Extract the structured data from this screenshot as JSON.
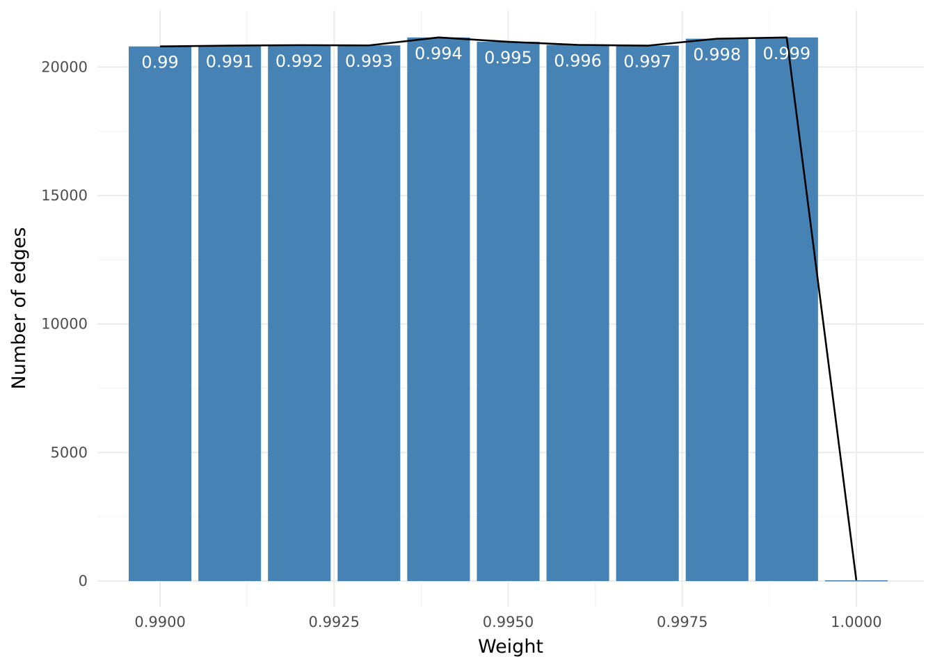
{
  "chart_data": {
    "type": "bar",
    "title": "",
    "xlabel": "Weight",
    "ylabel": "Number of edges",
    "bar_color": "#4682b4",
    "line_color": "#000000",
    "x_values": [
      0.99,
      0.991,
      0.992,
      0.993,
      0.994,
      0.995,
      0.996,
      0.997,
      0.998,
      0.999,
      1.0
    ],
    "values": [
      20800,
      20830,
      20850,
      20840,
      21150,
      20980,
      20860,
      20830,
      21100,
      21150,
      30
    ],
    "bar_labels": [
      "0.99",
      "0.991",
      "0.992",
      "0.993",
      "0.994",
      "0.995",
      "0.996",
      "0.997",
      "0.998",
      "0.999",
      ""
    ],
    "bar_width": 0.0009,
    "xlim": [
      0.9891,
      1.00097
    ],
    "ylim": [
      -1000,
      22200
    ],
    "x_ticks": [
      0.99,
      0.9925,
      0.995,
      0.9975,
      1.0
    ],
    "x_tick_labels": [
      "0.9900",
      "0.9925",
      "0.9950",
      "0.9975",
      "1.0000"
    ],
    "x_minor_ticks": [
      0.99125,
      0.99375,
      0.99625,
      0.99875
    ],
    "y_ticks": [
      0,
      5000,
      10000,
      15000,
      20000
    ],
    "y_tick_labels": [
      "0",
      "5000",
      "10000",
      "15000",
      "20000"
    ],
    "y_minor_ticks": [
      2500,
      7500,
      12500,
      17500
    ],
    "grid": true,
    "legend": "none"
  }
}
